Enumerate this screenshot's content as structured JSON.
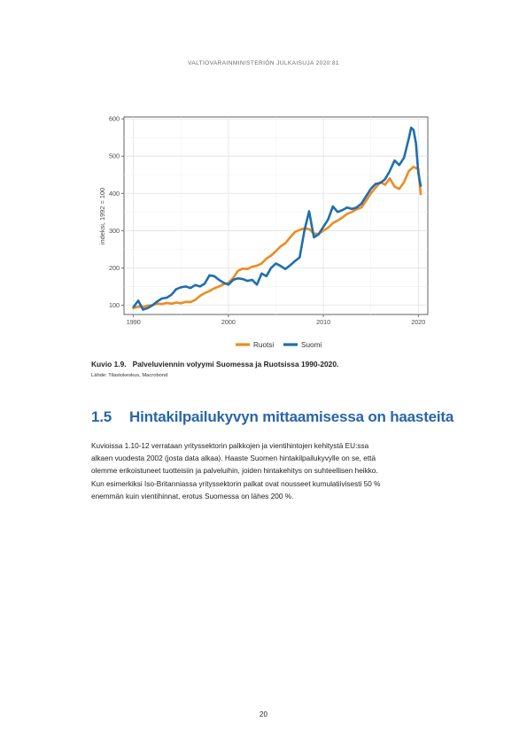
{
  "header": {
    "publication": "VALTIOVARAINMINISTERIÖN JULKAISUJA 2020:81"
  },
  "figure": {
    "number": "Kuvio 1.9.",
    "title": "Palveluviennin volyymi Suomessa ja Ruotsissa 1990-2020.",
    "source": "Lähde: Tilastokeskus, Macrobond"
  },
  "chart_data": {
    "type": "line",
    "title": "",
    "xlabel": "",
    "ylabel": "indeksi, 1992 = 100",
    "xlim": [
      1989,
      2021
    ],
    "ylim": [
      75,
      605
    ],
    "xticks": [
      1990,
      2000,
      2010,
      2020
    ],
    "yticks": [
      100,
      200,
      300,
      400,
      500,
      600
    ],
    "grid": true,
    "legend_position": "bottom",
    "series": [
      {
        "name": "Ruotsi",
        "color": "#ef8a22",
        "x": [
          1990,
          1990.5,
          1991,
          1991.5,
          1992,
          1992.5,
          1993,
          1993.5,
          1994,
          1994.5,
          1995,
          1995.5,
          1996,
          1996.5,
          1997,
          1997.5,
          1998,
          1998.5,
          1999,
          1999.5,
          2000,
          2000.5,
          2001,
          2001.5,
          2002,
          2002.5,
          2003,
          2003.5,
          2004,
          2004.5,
          2005,
          2005.5,
          2006,
          2006.5,
          2007,
          2007.5,
          2008,
          2008.5,
          2009,
          2009.5,
          2010,
          2010.5,
          2011,
          2011.5,
          2012,
          2012.5,
          2013,
          2013.5,
          2014,
          2014.5,
          2015,
          2015.5,
          2016,
          2016.5,
          2017,
          2017.5,
          2018,
          2018.5,
          2019,
          2019.5,
          2020,
          2020.25
        ],
        "y": [
          92,
          96,
          95,
          99,
          100,
          104,
          103,
          106,
          104,
          107,
          105,
          109,
          108,
          114,
          125,
          132,
          138,
          145,
          150,
          156,
          160,
          173,
          192,
          198,
          197,
          203,
          206,
          212,
          225,
          233,
          245,
          258,
          266,
          282,
          296,
          302,
          306,
          304,
          292,
          291,
          300,
          308,
          320,
          327,
          335,
          345,
          350,
          357,
          362,
          380,
          400,
          415,
          430,
          423,
          440,
          418,
          412,
          430,
          460,
          471,
          465,
          398
        ]
      },
      {
        "name": "Suomi",
        "color": "#1f6eae",
        "x": [
          1990,
          1990.5,
          1991,
          1991.5,
          1992,
          1992.5,
          1993,
          1993.5,
          1994,
          1994.5,
          1995,
          1995.5,
          1996,
          1996.5,
          1997,
          1997.5,
          1998,
          1998.5,
          1999,
          1999.5,
          2000,
          2000.5,
          2001,
          2001.5,
          2002,
          2002.5,
          2003,
          2003.5,
          2004,
          2004.5,
          2005,
          2005.5,
          2006,
          2006.5,
          2007,
          2007.5,
          2008,
          2008.5,
          2009,
          2009.5,
          2010,
          2010.5,
          2011,
          2011.5,
          2012,
          2012.5,
          2013,
          2013.5,
          2014,
          2014.5,
          2015,
          2015.5,
          2016,
          2016.5,
          2017,
          2017.5,
          2018,
          2018.5,
          2019,
          2019.25,
          2019.5,
          2019.75,
          2020,
          2020.25
        ],
        "y": [
          95,
          112,
          88,
          92,
          100,
          110,
          118,
          120,
          128,
          143,
          148,
          150,
          146,
          154,
          150,
          158,
          180,
          178,
          168,
          160,
          155,
          168,
          172,
          170,
          165,
          168,
          155,
          185,
          178,
          200,
          212,
          205,
          197,
          207,
          218,
          228,
          300,
          352,
          282,
          290,
          310,
          330,
          365,
          350,
          355,
          362,
          358,
          362,
          372,
          392,
          412,
          425,
          428,
          438,
          460,
          488,
          476,
          496,
          548,
          576,
          570,
          535,
          455,
          420
        ]
      }
    ]
  },
  "section": {
    "number": "1.5",
    "title": "Hintakilpailukyvyn mittaamisessa on haasteita"
  },
  "body": {
    "lines": [
      "Kuvioissa 1.10-12 verrataan yrityssektorin palkkojen ja vientihintojen kehitystä EU:ssa",
      "alkaen vuodesta 2002 (josta data alkaa). Haaste Suomen hintakilpailukyvylle on se, että",
      "olemme erikoistuneet tuotteisiin ja palveluihin, joiden hintakehitys on suhteellisen heikko.",
      "Kun esimerkiksi Iso-Britanniassa yrityssektorin palkat ovat nousseet kumulatiivisesti 50 %",
      "enemmän kuin vientihinnat, erotus Suomessa on lähes 200 %."
    ]
  },
  "footer": {
    "page_number": "20"
  }
}
